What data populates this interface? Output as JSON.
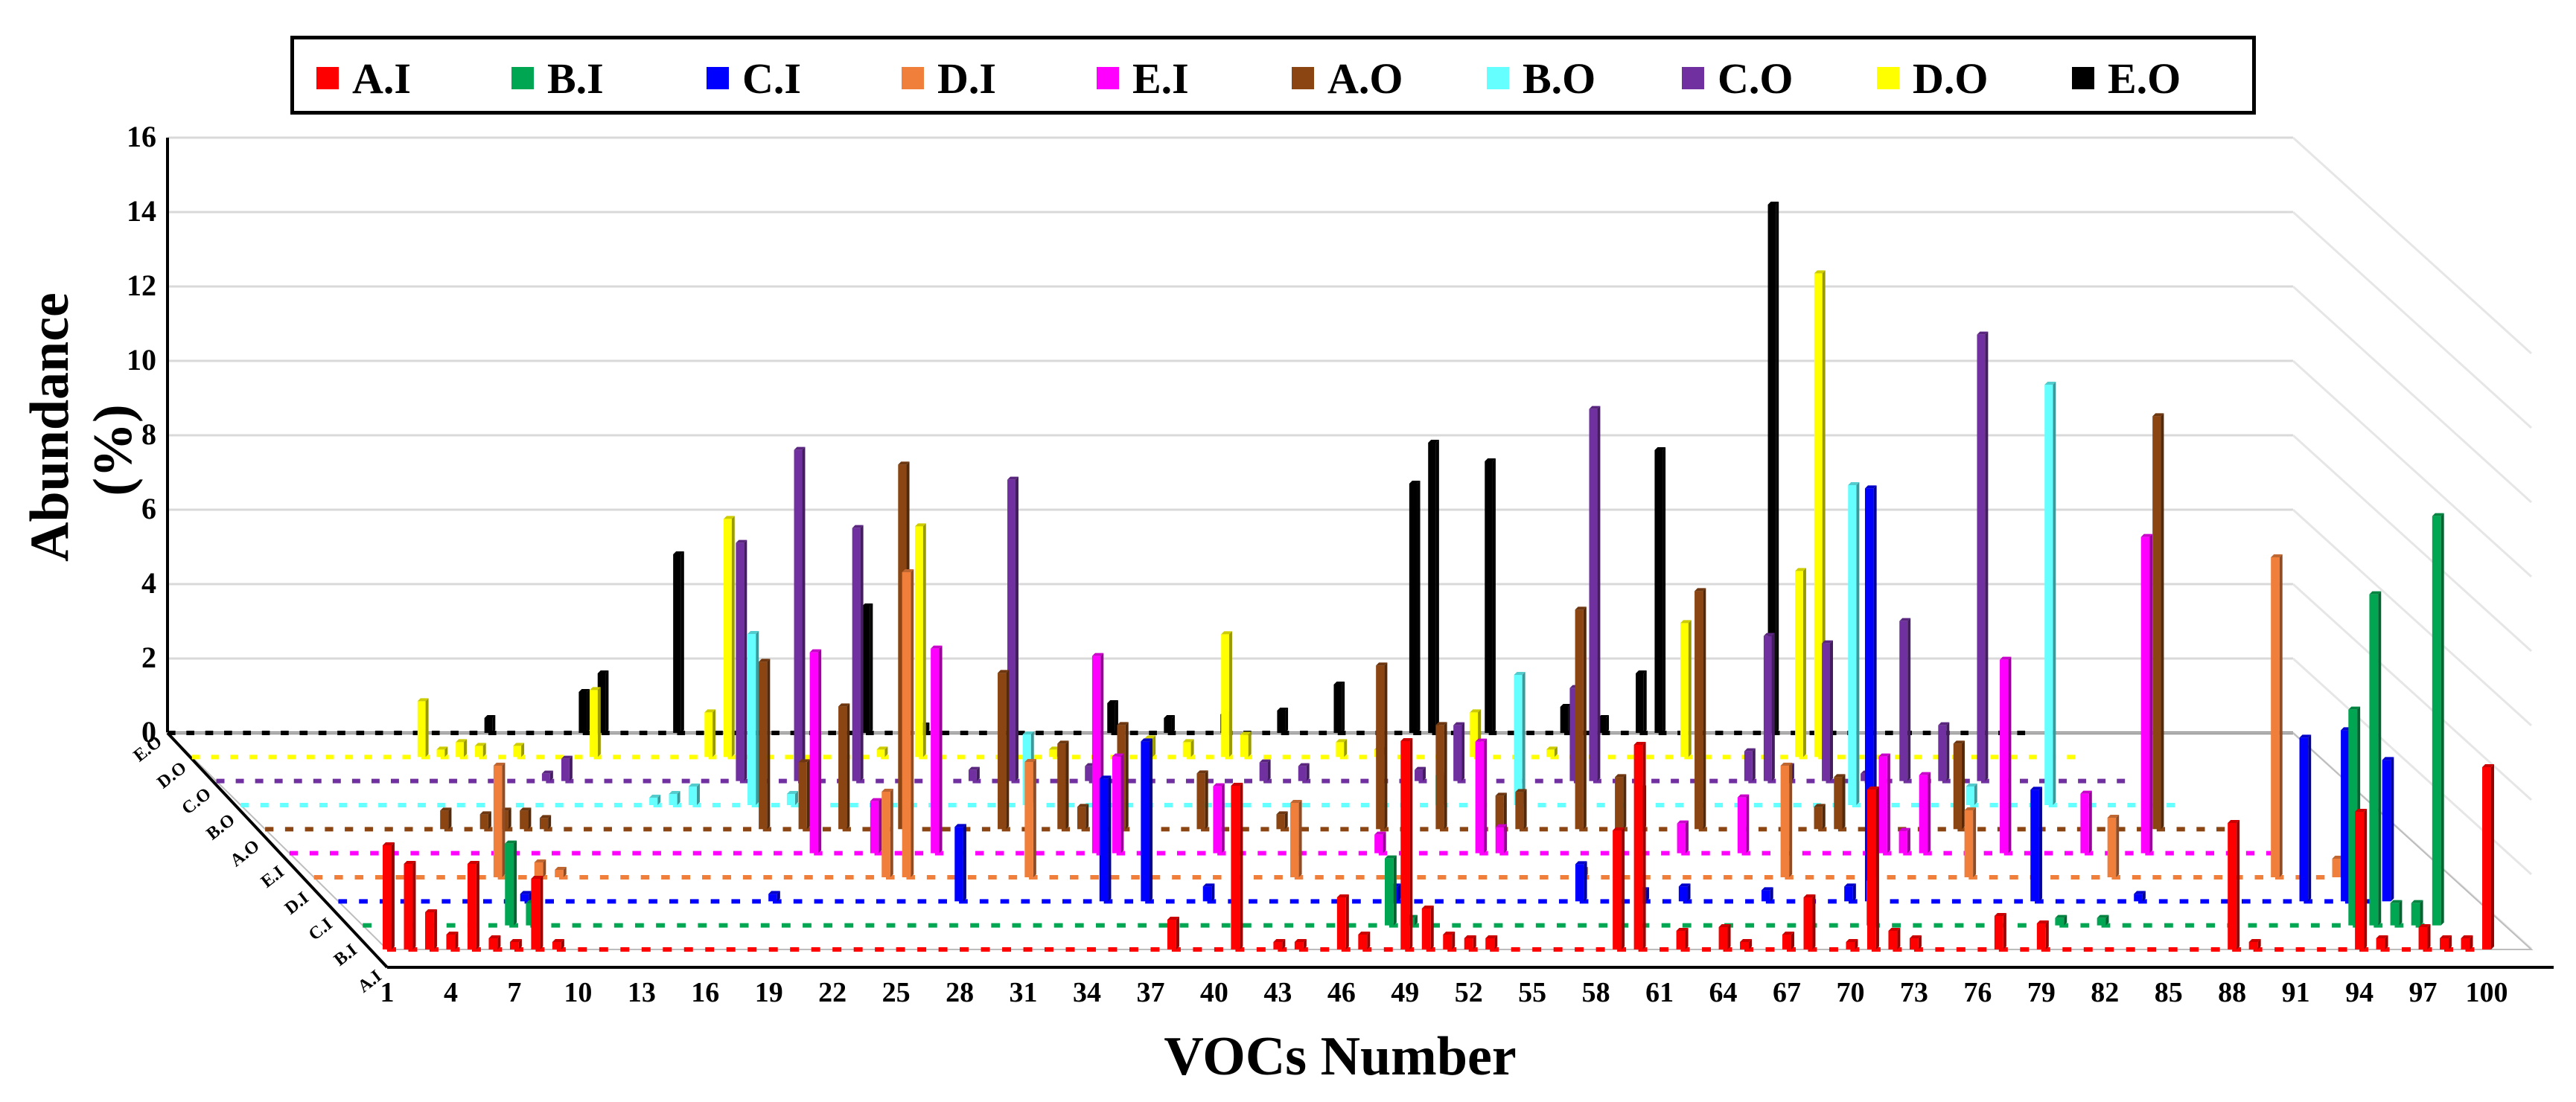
{
  "chart_data": {
    "type": "bar3d",
    "title": "",
    "xlabel": "VOCs Number",
    "ylabel": "Abundance (%)",
    "ylim": [
      0,
      16
    ],
    "yticks": [
      "0",
      "2",
      "4",
      "6",
      "8",
      "10",
      "12",
      "14",
      "16"
    ],
    "xticks": [
      "1",
      "4",
      "7",
      "10",
      "13",
      "16",
      "19",
      "22",
      "25",
      "28",
      "31",
      "34",
      "37",
      "40",
      "43",
      "46",
      "49",
      "52",
      "55",
      "58",
      "61",
      "64",
      "67",
      "70",
      "73",
      "76",
      "79",
      "82",
      "85",
      "88",
      "91",
      "94",
      "97",
      "100"
    ],
    "depth_labels": [
      "A.I",
      "B.I",
      "C.I",
      "D.I",
      "E.I",
      "A.O",
      "B.O",
      "C.O",
      "D.O",
      "E.O"
    ],
    "series": [
      {
        "name": "A.I",
        "color": "#ff0000",
        "bars": [
          [
            1,
            2.8
          ],
          [
            2,
            2.3
          ],
          [
            3,
            1.0
          ],
          [
            4,
            0.4
          ],
          [
            5,
            2.3
          ],
          [
            6,
            0.3
          ],
          [
            7,
            0.2
          ],
          [
            8,
            1.9
          ],
          [
            9,
            0.2
          ],
          [
            38,
            0.8
          ],
          [
            41,
            4.4
          ],
          [
            43,
            0.2
          ],
          [
            44,
            0.2
          ],
          [
            46,
            1.4
          ],
          [
            47,
            0.4
          ],
          [
            49,
            5.6
          ],
          [
            50,
            1.1
          ],
          [
            51,
            0.4
          ],
          [
            52,
            0.3
          ],
          [
            53,
            0.3
          ],
          [
            59,
            3.2
          ],
          [
            60,
            5.5
          ],
          [
            62,
            0.5
          ],
          [
            64,
            0.6
          ],
          [
            65,
            0.2
          ],
          [
            67,
            0.4
          ],
          [
            68,
            1.4
          ],
          [
            70,
            0.2
          ],
          [
            71,
            4.3
          ],
          [
            72,
            0.5
          ],
          [
            73,
            0.3
          ],
          [
            77,
            0.9
          ],
          [
            79,
            0.7
          ],
          [
            88,
            3.4
          ],
          [
            89,
            0.2
          ],
          [
            94,
            3.7
          ],
          [
            95,
            0.3
          ],
          [
            97,
            0.6
          ],
          [
            98,
            0.3
          ],
          [
            99,
            0.3
          ],
          [
            100,
            4.9
          ]
        ]
      },
      {
        "name": "B.I",
        "color": "#00a651",
        "bars": [
          [
            8,
            2.2
          ],
          [
            9,
            0.6
          ],
          [
            50,
            1.8
          ],
          [
            51,
            0.2
          ],
          [
            73,
            1.2
          ],
          [
            82,
            0.2
          ],
          [
            84,
            0.2
          ],
          [
            96,
            5.8
          ],
          [
            97,
            8.9
          ],
          [
            98,
            0.6
          ],
          [
            99,
            0.6
          ],
          [
            100,
            11.0
          ]
        ]
      },
      {
        "name": "C.I",
        "color": "#0000ff",
        "bars": [
          [
            10,
            0.2
          ],
          [
            22,
            0.2
          ],
          [
            31,
            2.0
          ],
          [
            38,
            3.3
          ],
          [
            40,
            4.3
          ],
          [
            43,
            0.4
          ],
          [
            52,
            0.4
          ],
          [
            61,
            1.0
          ],
          [
            64,
            0.3
          ],
          [
            66,
            0.4
          ],
          [
            70,
            0.3
          ],
          [
            74,
            0.4
          ],
          [
            75,
            11.1
          ],
          [
            83,
            3.0
          ],
          [
            88,
            0.2
          ],
          [
            96,
            4.4
          ],
          [
            98,
            4.6
          ],
          [
            100,
            3.8
          ]
        ]
      },
      {
        "name": "D.I",
        "color": "#f07f3c",
        "bars": [
          [
            10,
            3.0
          ],
          [
            12,
            0.4
          ],
          [
            13,
            0.2
          ],
          [
            29,
            2.3
          ],
          [
            30,
            8.2
          ],
          [
            36,
            3.1
          ],
          [
            49,
            2.0
          ],
          [
            63,
            0.2
          ],
          [
            73,
            3.0
          ],
          [
            82,
            1.8
          ],
          [
            89,
            1.6
          ],
          [
            97,
            8.6
          ],
          [
            100,
            0.5
          ]
        ]
      },
      {
        "name": "E.I",
        "color": "#ff00ff",
        "bars": [
          [
            27,
            5.4
          ],
          [
            30,
            1.4
          ],
          [
            33,
            5.5
          ],
          [
            41,
            5.3
          ],
          [
            42,
            2.6
          ],
          [
            47,
            1.8
          ],
          [
            55,
            0.5
          ],
          [
            60,
            3.0
          ],
          [
            61,
            0.7
          ],
          [
            70,
            0.8
          ],
          [
            73,
            1.5
          ],
          [
            80,
            2.6
          ],
          [
            81,
            0.6
          ],
          [
            82,
            2.1
          ],
          [
            86,
            5.2
          ],
          [
            90,
            1.6
          ],
          [
            93,
            8.5
          ]
        ]
      },
      {
        "name": "A.O",
        "color": "#8b4513",
        "bars": [
          [
            10,
            0.5
          ],
          [
            12,
            0.4
          ],
          [
            13,
            0.5
          ],
          [
            14,
            0.5
          ],
          [
            15,
            0.3
          ],
          [
            26,
            4.5
          ],
          [
            28,
            1.8
          ],
          [
            30,
            3.3
          ],
          [
            33,
            9.8
          ],
          [
            38,
            4.2
          ],
          [
            41,
            2.3
          ],
          [
            42,
            0.6
          ],
          [
            44,
            2.8
          ],
          [
            48,
            1.5
          ],
          [
            52,
            0.4
          ],
          [
            57,
            4.4
          ],
          [
            60,
            2.8
          ],
          [
            63,
            0.9
          ],
          [
            64,
            1.0
          ],
          [
            67,
            5.9
          ],
          [
            69,
            1.4
          ],
          [
            70,
            1.1
          ],
          [
            73,
            6.4
          ],
          [
            79,
            0.6
          ],
          [
            80,
            1.4
          ],
          [
            86,
            2.3
          ],
          [
            96,
            11.1
          ]
        ]
      },
      {
        "name": "B.O",
        "color": "#66ffff",
        "bars": [
          [
            22,
            0.2
          ],
          [
            23,
            0.3
          ],
          [
            24,
            0.5
          ],
          [
            27,
            4.6
          ],
          [
            29,
            0.3
          ],
          [
            41,
            1.9
          ],
          [
            62,
            0.8
          ],
          [
            66,
            3.5
          ],
          [
            83,
            8.6
          ],
          [
            89,
            0.5
          ],
          [
            93,
            11.3
          ]
        ]
      },
      {
        "name": "C.O",
        "color": "#7030a0",
        "bars": [
          [
            18,
            0.2
          ],
          [
            19,
            0.6
          ],
          [
            28,
            6.4
          ],
          [
            31,
            8.9
          ],
          [
            34,
            6.8
          ],
          [
            40,
            0.3
          ],
          [
            42,
            8.1
          ],
          [
            46,
            0.4
          ],
          [
            55,
            0.5
          ],
          [
            57,
            0.4
          ],
          [
            63,
            0.3
          ],
          [
            65,
            1.5
          ],
          [
            71,
            2.5
          ],
          [
            72,
            10.0
          ],
          [
            80,
            0.8
          ],
          [
            81,
            3.9
          ],
          [
            82,
            0.4
          ],
          [
            84,
            3.7
          ],
          [
            86,
            0.2
          ],
          [
            88,
            4.3
          ],
          [
            90,
            1.5
          ],
          [
            92,
            12.0
          ]
        ]
      },
      {
        "name": "D.O",
        "color": "#ffff00",
        "bars": [
          [
            13,
            1.5
          ],
          [
            14,
            0.2
          ],
          [
            15,
            0.4
          ],
          [
            16,
            0.3
          ],
          [
            18,
            0.3
          ],
          [
            22,
            1.8
          ],
          [
            28,
            1.2
          ],
          [
            29,
            6.4
          ],
          [
            37,
            0.2
          ],
          [
            39,
            6.2
          ],
          [
            46,
            0.2
          ],
          [
            51,
            0.5
          ],
          [
            53,
            0.4
          ],
          [
            55,
            3.3
          ],
          [
            56,
            0.6
          ],
          [
            61,
            0.4
          ],
          [
            63,
            0.2
          ],
          [
            68,
            1.2
          ],
          [
            72,
            0.2
          ],
          [
            79,
            3.6
          ],
          [
            85,
            5.0
          ],
          [
            86,
            13.0
          ]
        ]
      },
      {
        "name": "E.O",
        "color": "#000000",
        "bars": [
          [
            18,
            0.4
          ],
          [
            23,
            1.1
          ],
          [
            24,
            1.6
          ],
          [
            28,
            4.8
          ],
          [
            38,
            3.4
          ],
          [
            41,
            0.2
          ],
          [
            51,
            0.8
          ],
          [
            54,
            0.4
          ],
          [
            57,
            0.5
          ],
          [
            60,
            0.6
          ],
          [
            63,
            1.3
          ],
          [
            67,
            6.7
          ],
          [
            68,
            7.8
          ],
          [
            71,
            7.3
          ],
          [
            75,
            0.7
          ],
          [
            77,
            0.4
          ],
          [
            79,
            1.6
          ],
          [
            80,
            7.6
          ],
          [
            86,
            14.2
          ]
        ]
      }
    ]
  }
}
